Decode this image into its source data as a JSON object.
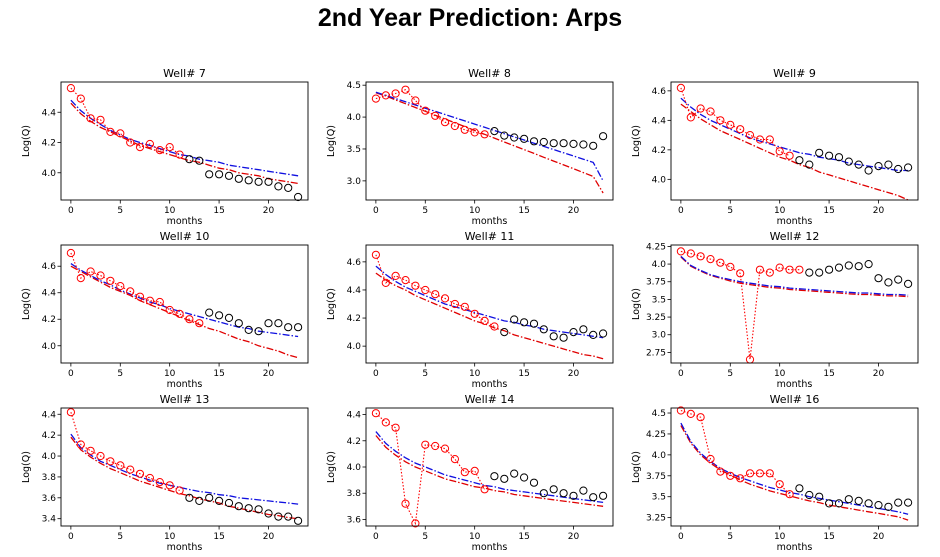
{
  "title": "2nd Year Prediction: Arps",
  "colors": {
    "observed_train": "#ff0000",
    "observed_test": "#000000",
    "fit_red": "#e00000",
    "fit_blue": "#1010e0"
  },
  "chart_data": [
    {
      "type": "line",
      "title": "Well# 7",
      "xlabel": "months",
      "ylabel": "Log(Q)",
      "xlim": [
        -1,
        24
      ],
      "ylim": [
        3.82,
        4.6
      ],
      "xticks": [
        0,
        5,
        10,
        15,
        20
      ],
      "yticks": [
        4.0,
        4.2,
        4.4
      ],
      "x": [
        0,
        1,
        2,
        3,
        4,
        5,
        6,
        7,
        8,
        9,
        10,
        11,
        12,
        13,
        14,
        15,
        16,
        17,
        18,
        19,
        20,
        21,
        22,
        23
      ],
      "observed": [
        4.56,
        4.49,
        4.36,
        4.35,
        4.27,
        4.26,
        4.2,
        4.17,
        4.19,
        4.15,
        4.17,
        4.12,
        4.09,
        4.08,
        3.99,
        3.99,
        3.98,
        3.96,
        3.95,
        3.94,
        3.94,
        3.91,
        3.9,
        3.84
      ],
      "train_end": 11,
      "series": [
        {
          "style": "red-dashdot",
          "values": [
            4.46,
            4.39,
            4.34,
            4.3,
            4.27,
            4.24,
            4.21,
            4.18,
            4.16,
            4.14,
            4.12,
            4.1,
            4.08,
            4.07,
            4.05,
            4.03,
            4.02,
            4.0,
            3.99,
            3.98,
            3.96,
            3.95,
            3.94,
            3.93
          ]
        },
        {
          "style": "blue-dashdot",
          "values": [
            4.48,
            4.41,
            4.36,
            4.32,
            4.28,
            4.25,
            4.22,
            4.2,
            4.18,
            4.16,
            4.14,
            4.12,
            4.11,
            4.09,
            4.08,
            4.07,
            4.05,
            4.04,
            4.03,
            4.02,
            4.01,
            4.0,
            3.99,
            3.98
          ]
        }
      ]
    },
    {
      "type": "line",
      "title": "Well# 8",
      "xlabel": "months",
      "ylabel": "Log(Q)",
      "xlim": [
        -1,
        24
      ],
      "ylim": [
        2.7,
        4.55
      ],
      "xticks": [
        0,
        5,
        10,
        15,
        20
      ],
      "yticks": [
        3.0,
        3.5,
        4.0,
        4.5
      ],
      "x": [
        0,
        1,
        2,
        3,
        4,
        5,
        6,
        7,
        8,
        9,
        10,
        11,
        12,
        13,
        14,
        15,
        16,
        17,
        18,
        19,
        20,
        21,
        22,
        23
      ],
      "observed": [
        4.29,
        4.34,
        4.37,
        4.43,
        4.26,
        4.1,
        4.02,
        3.92,
        3.86,
        3.8,
        3.76,
        3.73,
        3.78,
        3.71,
        3.68,
        3.66,
        3.62,
        3.61,
        3.59,
        3.59,
        3.58,
        3.57,
        3.55,
        3.7
      ],
      "train_end": 11,
      "series": [
        {
          "style": "red-dashdot",
          "values": [
            4.38,
            4.33,
            4.27,
            4.21,
            4.15,
            4.09,
            4.03,
            3.97,
            3.91,
            3.85,
            3.79,
            3.73,
            3.67,
            3.61,
            3.55,
            3.49,
            3.43,
            3.37,
            3.31,
            3.25,
            3.19,
            3.13,
            3.07,
            2.81
          ]
        },
        {
          "style": "blue-dashdot",
          "values": [
            4.39,
            4.34,
            4.29,
            4.24,
            4.19,
            4.14,
            4.09,
            4.04,
            3.99,
            3.94,
            3.89,
            3.84,
            3.79,
            3.74,
            3.69,
            3.64,
            3.59,
            3.54,
            3.49,
            3.44,
            3.39,
            3.34,
            3.29,
            3.0
          ]
        }
      ]
    },
    {
      "type": "line",
      "title": "Well# 9",
      "xlabel": "months",
      "ylabel": "Log(Q)",
      "xlim": [
        -1,
        24
      ],
      "ylim": [
        3.86,
        4.66
      ],
      "xticks": [
        0,
        5,
        10,
        15,
        20
      ],
      "yticks": [
        4.0,
        4.2,
        4.4,
        4.6
      ],
      "x": [
        0,
        1,
        2,
        3,
        4,
        5,
        6,
        7,
        8,
        9,
        10,
        11,
        12,
        13,
        14,
        15,
        16,
        17,
        18,
        19,
        20,
        21,
        22,
        23
      ],
      "observed": [
        4.62,
        4.42,
        4.48,
        4.46,
        4.4,
        4.37,
        4.34,
        4.3,
        4.27,
        4.27,
        4.19,
        4.16,
        4.13,
        4.1,
        4.18,
        4.16,
        4.15,
        4.12,
        4.1,
        4.06,
        4.09,
        4.1,
        4.07,
        4.08
      ],
      "train_end": 11,
      "series": [
        {
          "style": "red-dashdot",
          "values": [
            4.51,
            4.46,
            4.41,
            4.37,
            4.33,
            4.3,
            4.27,
            4.24,
            4.21,
            4.18,
            4.15,
            4.13,
            4.1,
            4.08,
            4.05,
            4.03,
            4.01,
            3.99,
            3.97,
            3.95,
            3.93,
            3.91,
            3.89,
            3.86
          ]
        },
        {
          "style": "blue-dashdot",
          "values": [
            4.55,
            4.49,
            4.44,
            4.4,
            4.37,
            4.34,
            4.31,
            4.28,
            4.26,
            4.24,
            4.22,
            4.2,
            4.18,
            4.17,
            4.15,
            4.14,
            4.13,
            4.11,
            4.1,
            4.09,
            4.08,
            4.07,
            4.06,
            4.06
          ]
        }
      ]
    },
    {
      "type": "line",
      "title": "Well# 10",
      "xlabel": "months",
      "ylabel": "Log(Q)",
      "xlim": [
        -1,
        24
      ],
      "ylim": [
        3.87,
        4.76
      ],
      "xticks": [
        0,
        5,
        10,
        15,
        20
      ],
      "yticks": [
        4.0,
        4.2,
        4.4,
        4.6
      ],
      "x": [
        0,
        1,
        2,
        3,
        4,
        5,
        6,
        7,
        8,
        9,
        10,
        11,
        12,
        13,
        14,
        15,
        16,
        17,
        18,
        19,
        20,
        21,
        22,
        23
      ],
      "observed": [
        4.7,
        4.51,
        4.56,
        4.53,
        4.49,
        4.45,
        4.41,
        4.37,
        4.34,
        4.33,
        4.27,
        4.24,
        4.2,
        4.17,
        4.25,
        4.23,
        4.21,
        4.17,
        4.12,
        4.11,
        4.17,
        4.17,
        4.14,
        4.14
      ],
      "train_end": 13,
      "series": [
        {
          "style": "red-dashdot",
          "values": [
            4.6,
            4.56,
            4.52,
            4.48,
            4.44,
            4.41,
            4.38,
            4.34,
            4.31,
            4.28,
            4.25,
            4.22,
            4.19,
            4.16,
            4.13,
            4.11,
            4.08,
            4.05,
            4.03,
            4.0,
            3.98,
            3.96,
            3.93,
            3.91
          ]
        },
        {
          "style": "blue-dashdot",
          "values": [
            4.62,
            4.57,
            4.53,
            4.49,
            4.46,
            4.42,
            4.39,
            4.36,
            4.33,
            4.31,
            4.28,
            4.26,
            4.24,
            4.22,
            4.2,
            4.18,
            4.16,
            4.14,
            4.13,
            4.11,
            4.1,
            4.09,
            4.08,
            4.07
          ]
        }
      ]
    },
    {
      "type": "line",
      "title": "Well# 11",
      "xlabel": "months",
      "ylabel": "Log(Q)",
      "xlim": [
        -1,
        24
      ],
      "ylim": [
        3.88,
        4.72
      ],
      "xticks": [
        0,
        5,
        10,
        15,
        20
      ],
      "yticks": [
        4.0,
        4.2,
        4.4,
        4.6
      ],
      "x": [
        0,
        1,
        2,
        3,
        4,
        5,
        6,
        7,
        8,
        9,
        10,
        11,
        12,
        13,
        14,
        15,
        16,
        17,
        18,
        19,
        20,
        21,
        22,
        23
      ],
      "observed": [
        4.65,
        4.45,
        4.5,
        4.47,
        4.43,
        4.4,
        4.37,
        4.34,
        4.3,
        4.28,
        4.23,
        4.18,
        4.14,
        4.1,
        4.19,
        4.17,
        4.16,
        4.12,
        4.07,
        4.06,
        4.1,
        4.12,
        4.08,
        4.09
      ],
      "train_end": 12,
      "series": [
        {
          "style": "red-dashdot",
          "values": [
            4.52,
            4.47,
            4.43,
            4.4,
            4.36,
            4.33,
            4.3,
            4.27,
            4.24,
            4.21,
            4.18,
            4.16,
            4.13,
            4.11,
            4.08,
            4.06,
            4.04,
            4.02,
            4.0,
            3.98,
            3.96,
            3.94,
            3.93,
            3.91
          ]
        },
        {
          "style": "blue-dashdot",
          "values": [
            4.57,
            4.51,
            4.46,
            4.42,
            4.39,
            4.36,
            4.33,
            4.3,
            4.28,
            4.26,
            4.24,
            4.22,
            4.2,
            4.18,
            4.17,
            4.15,
            4.14,
            4.12,
            4.11,
            4.1,
            4.09,
            4.08,
            4.07,
            4.06
          ]
        }
      ]
    },
    {
      "type": "line",
      "title": "Well# 12",
      "xlabel": "months",
      "ylabel": "Log(Q)",
      "xlim": [
        -1,
        24
      ],
      "ylim": [
        2.6,
        4.27
      ],
      "xticks": [
        0,
        5,
        10,
        15,
        20
      ],
      "yticks": [
        2.75,
        3.0,
        3.25,
        3.5,
        3.75,
        4.0,
        4.25
      ],
      "x": [
        0,
        1,
        2,
        3,
        4,
        5,
        6,
        7,
        8,
        9,
        10,
        11,
        12,
        13,
        14,
        15,
        16,
        17,
        18,
        19,
        20,
        21,
        22,
        23
      ],
      "observed": [
        4.18,
        4.15,
        4.11,
        4.07,
        4.02,
        3.96,
        3.87,
        2.65,
        3.92,
        3.88,
        3.95,
        3.92,
        3.92,
        3.88,
        3.88,
        3.92,
        3.95,
        3.98,
        3.97,
        4.0,
        3.8,
        3.74,
        3.78,
        3.72
      ],
      "train_end": 12,
      "series": [
        {
          "style": "red-dashdot",
          "values": [
            4.1,
            3.97,
            3.9,
            3.84,
            3.8,
            3.76,
            3.73,
            3.71,
            3.69,
            3.67,
            3.66,
            3.64,
            3.63,
            3.62,
            3.61,
            3.6,
            3.59,
            3.58,
            3.57,
            3.57,
            3.56,
            3.55,
            3.55,
            3.54
          ]
        },
        {
          "style": "blue-dashdot",
          "values": [
            4.11,
            3.98,
            3.91,
            3.85,
            3.81,
            3.78,
            3.75,
            3.73,
            3.71,
            3.69,
            3.68,
            3.66,
            3.65,
            3.64,
            3.63,
            3.62,
            3.61,
            3.6,
            3.59,
            3.59,
            3.58,
            3.57,
            3.57,
            3.56
          ]
        }
      ]
    },
    {
      "type": "line",
      "title": "Well# 13",
      "xlabel": "months",
      "ylabel": "Log(Q)",
      "xlim": [
        -1,
        24
      ],
      "ylim": [
        3.33,
        4.46
      ],
      "xticks": [
        0,
        5,
        10,
        15,
        20
      ],
      "yticks": [
        3.4,
        3.6,
        3.8,
        4.0,
        4.2,
        4.4
      ],
      "x": [
        0,
        1,
        2,
        3,
        4,
        5,
        6,
        7,
        8,
        9,
        10,
        11,
        12,
        13,
        14,
        15,
        16,
        17,
        18,
        19,
        20,
        21,
        22,
        23
      ],
      "observed": [
        4.42,
        4.11,
        4.05,
        4.0,
        3.95,
        3.91,
        3.87,
        3.83,
        3.79,
        3.75,
        3.72,
        3.67,
        3.6,
        3.57,
        3.6,
        3.57,
        3.55,
        3.52,
        3.5,
        3.49,
        3.45,
        3.42,
        3.42,
        3.38
      ],
      "train_end": 11,
      "series": [
        {
          "style": "red-dashdot",
          "values": [
            4.18,
            4.06,
            3.99,
            3.93,
            3.88,
            3.84,
            3.8,
            3.76,
            3.73,
            3.7,
            3.67,
            3.64,
            3.62,
            3.59,
            3.57,
            3.55,
            3.52,
            3.5,
            3.48,
            3.46,
            3.44,
            3.43,
            3.41,
            3.4
          ]
        },
        {
          "style": "blue-dashdot",
          "values": [
            4.21,
            4.08,
            4.01,
            3.95,
            3.91,
            3.87,
            3.83,
            3.8,
            3.77,
            3.74,
            3.72,
            3.7,
            3.68,
            3.66,
            3.65,
            3.63,
            3.62,
            3.6,
            3.59,
            3.58,
            3.57,
            3.56,
            3.55,
            3.54
          ]
        }
      ]
    },
    {
      "type": "line",
      "title": "Well# 14",
      "xlabel": "months",
      "ylabel": "Log(Q)",
      "xlim": [
        -1,
        24
      ],
      "ylim": [
        3.55,
        4.45
      ],
      "xticks": [
        0,
        5,
        10,
        15,
        20
      ],
      "yticks": [
        3.6,
        3.8,
        4.0,
        4.2,
        4.4
      ],
      "x": [
        0,
        1,
        2,
        3,
        4,
        5,
        6,
        7,
        8,
        9,
        10,
        11,
        12,
        13,
        14,
        15,
        16,
        17,
        18,
        19,
        20,
        21,
        22,
        23
      ],
      "observed": [
        4.41,
        4.34,
        4.3,
        3.72,
        3.57,
        4.17,
        4.16,
        4.14,
        4.06,
        3.96,
        3.97,
        3.83,
        3.93,
        3.91,
        3.95,
        3.92,
        3.88,
        3.8,
        3.83,
        3.8,
        3.78,
        3.82,
        3.77,
        3.78
      ],
      "train_end": 11,
      "series": [
        {
          "style": "red-dashdot",
          "values": [
            4.24,
            4.15,
            4.09,
            4.04,
            4.0,
            3.97,
            3.94,
            3.91,
            3.89,
            3.87,
            3.85,
            3.84,
            3.82,
            3.81,
            3.79,
            3.78,
            3.77,
            3.76,
            3.75,
            3.74,
            3.73,
            3.72,
            3.71,
            3.7
          ]
        },
        {
          "style": "blue-dashdot",
          "values": [
            4.27,
            4.18,
            4.12,
            4.07,
            4.03,
            4.0,
            3.97,
            3.94,
            3.92,
            3.9,
            3.88,
            3.86,
            3.85,
            3.83,
            3.82,
            3.81,
            3.8,
            3.79,
            3.78,
            3.77,
            3.76,
            3.75,
            3.74,
            3.73
          ]
        }
      ]
    },
    {
      "type": "line",
      "title": "Well# 16",
      "xlabel": "months",
      "ylabel": "Log(Q)",
      "xlim": [
        -1,
        24
      ],
      "ylim": [
        3.15,
        4.56
      ],
      "xticks": [
        0,
        5,
        10,
        15,
        20
      ],
      "yticks": [
        3.25,
        3.5,
        3.75,
        4.0,
        4.25,
        4.5
      ],
      "x": [
        0,
        1,
        2,
        3,
        4,
        5,
        6,
        7,
        8,
        9,
        10,
        11,
        12,
        13,
        14,
        15,
        16,
        17,
        18,
        19,
        20,
        21,
        22,
        23
      ],
      "observed": [
        4.53,
        4.49,
        4.45,
        3.95,
        3.8,
        3.75,
        3.72,
        3.78,
        3.78,
        3.78,
        3.65,
        3.53,
        3.6,
        3.52,
        3.5,
        3.42,
        3.42,
        3.47,
        3.45,
        3.42,
        3.4,
        3.38,
        3.43,
        3.43
      ],
      "train_end": 11,
      "series": [
        {
          "style": "red-dashdot",
          "values": [
            4.35,
            4.14,
            4.0,
            3.9,
            3.82,
            3.76,
            3.7,
            3.65,
            3.61,
            3.57,
            3.54,
            3.51,
            3.48,
            3.45,
            3.43,
            3.4,
            3.38,
            3.36,
            3.34,
            3.32,
            3.3,
            3.28,
            3.26,
            3.22
          ]
        },
        {
          "style": "blue-dashdot",
          "values": [
            4.38,
            4.16,
            4.02,
            3.92,
            3.84,
            3.78,
            3.73,
            3.69,
            3.65,
            3.61,
            3.58,
            3.55,
            3.53,
            3.5,
            3.48,
            3.46,
            3.44,
            3.42,
            3.4,
            3.38,
            3.36,
            3.34,
            3.32,
            3.29
          ]
        }
      ]
    }
  ]
}
